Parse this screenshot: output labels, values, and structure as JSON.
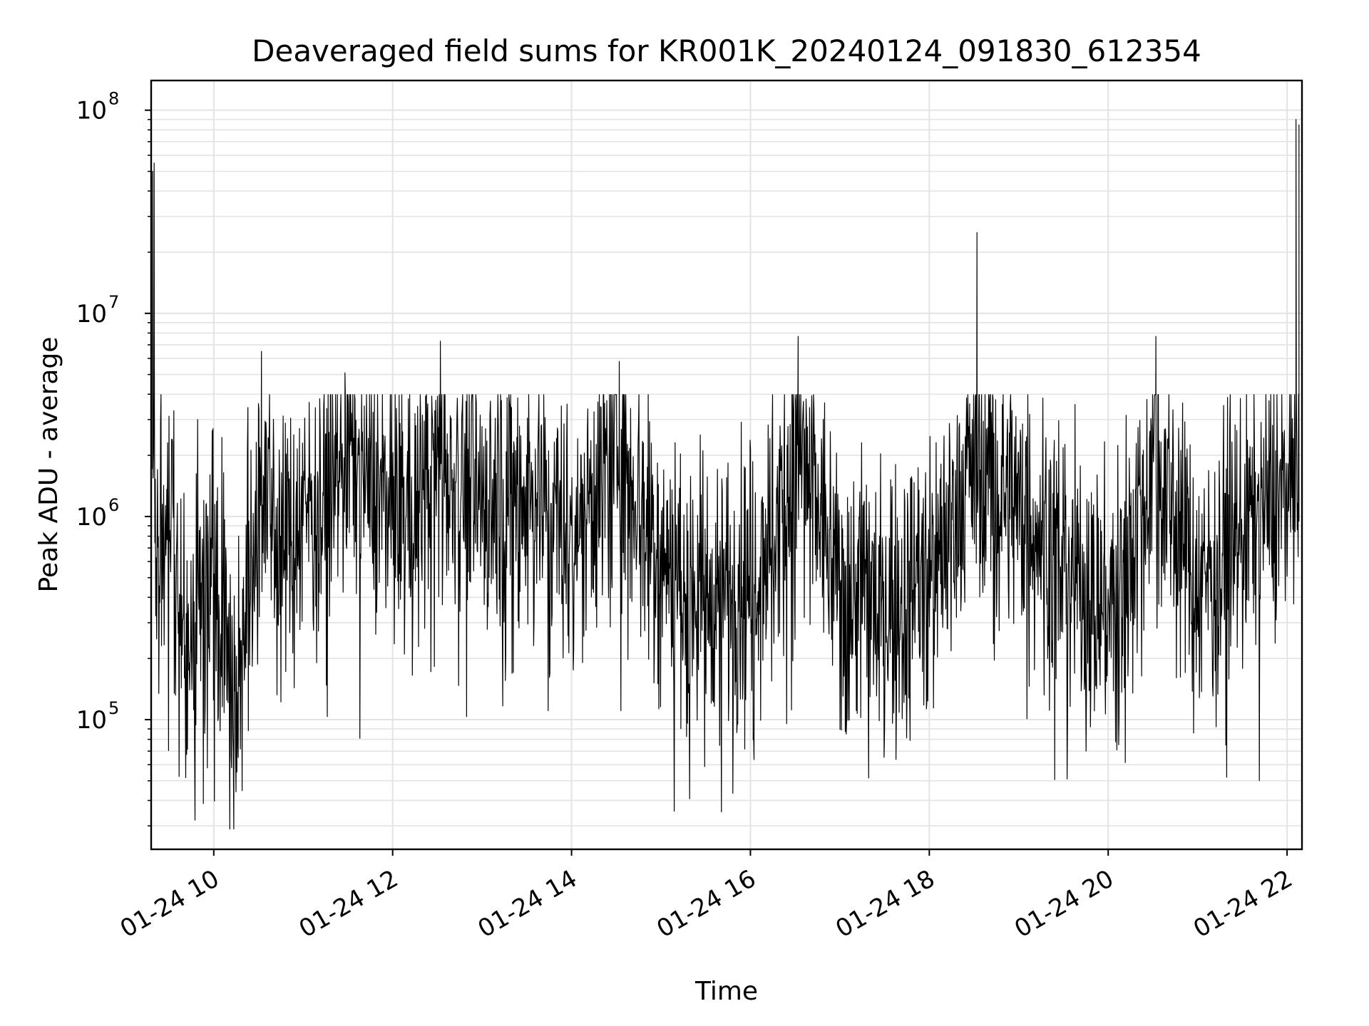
{
  "chart_data": {
    "type": "line",
    "title": "Deaveraged field sums for KR001K_20240124_091830_612354",
    "xlabel": "Time",
    "ylabel": "Peak ADU - average",
    "x_ticks": [
      "01-24 10",
      "01-24 12",
      "01-24 14",
      "01-24 16",
      "01-24 18",
      "01-24 20",
      "01-24 22"
    ],
    "y_ticks": [
      {
        "base": "10",
        "exp": "5",
        "value": 100000
      },
      {
        "base": "10",
        "exp": "6",
        "value": 1000000
      },
      {
        "base": "10",
        "exp": "7",
        "value": 10000000
      },
      {
        "base": "10",
        "exp": "8",
        "value": 100000000
      }
    ],
    "xlim": [
      "2024-01-24T09:18",
      "2024-01-24T22:10"
    ],
    "ylim": [
      23000,
      140000000
    ],
    "yscale": "log",
    "grid": true,
    "line_color": "#000000",
    "grid_color": "#e3e3e3",
    "series": [
      {
        "points": [
          [
            "2024-01-24T09:19",
            50000000
          ],
          [
            "2024-01-24T09:20",
            55000000
          ],
          [
            "2024-01-24T09:22",
            800000
          ],
          [
            "2024-01-24T09:30",
            1200000
          ],
          [
            "2024-01-24T09:45",
            300000
          ],
          [
            "2024-01-24T10:00",
            900000
          ],
          [
            "2024-01-24T10:15",
            120000
          ],
          [
            "2024-01-24T10:32",
            6500000
          ],
          [
            "2024-01-24T10:45",
            700000
          ],
          [
            "2024-01-24T11:00",
            1200000
          ],
          [
            "2024-01-24T11:15",
            1400000
          ],
          [
            "2024-01-24T11:28",
            5100000
          ],
          [
            "2024-01-24T11:45",
            1500000
          ],
          [
            "2024-01-24T12:00",
            1300000
          ],
          [
            "2024-01-24T12:15",
            1100000
          ],
          [
            "2024-01-24T12:32",
            7300000
          ],
          [
            "2024-01-24T12:45",
            1600000
          ],
          [
            "2024-01-24T13:00",
            1400000
          ],
          [
            "2024-01-24T13:30",
            1500000
          ],
          [
            "2024-01-24T14:00",
            900000
          ],
          [
            "2024-01-24T14:32",
            5800000
          ],
          [
            "2024-01-24T15:00",
            700000
          ],
          [
            "2024-01-24T15:30",
            450000
          ],
          [
            "2024-01-24T16:00",
            500000
          ],
          [
            "2024-01-24T16:32",
            7700000
          ],
          [
            "2024-01-24T17:00",
            500000
          ],
          [
            "2024-01-24T17:30",
            400000
          ],
          [
            "2024-01-24T18:00",
            550000
          ],
          [
            "2024-01-24T18:32",
            25000000
          ],
          [
            "2024-01-24T19:00",
            1100000
          ],
          [
            "2024-01-24T19:30",
            700000
          ],
          [
            "2024-01-24T20:00",
            350000
          ],
          [
            "2024-01-24T20:32",
            7700000
          ],
          [
            "2024-01-24T21:00",
            500000
          ],
          [
            "2024-01-24T21:30",
            900000
          ],
          [
            "2024-01-24T22:00",
            1500000
          ],
          [
            "2024-01-24T22:06",
            90000000
          ],
          [
            "2024-01-24T22:08",
            85000000
          ]
        ]
      }
    ]
  }
}
